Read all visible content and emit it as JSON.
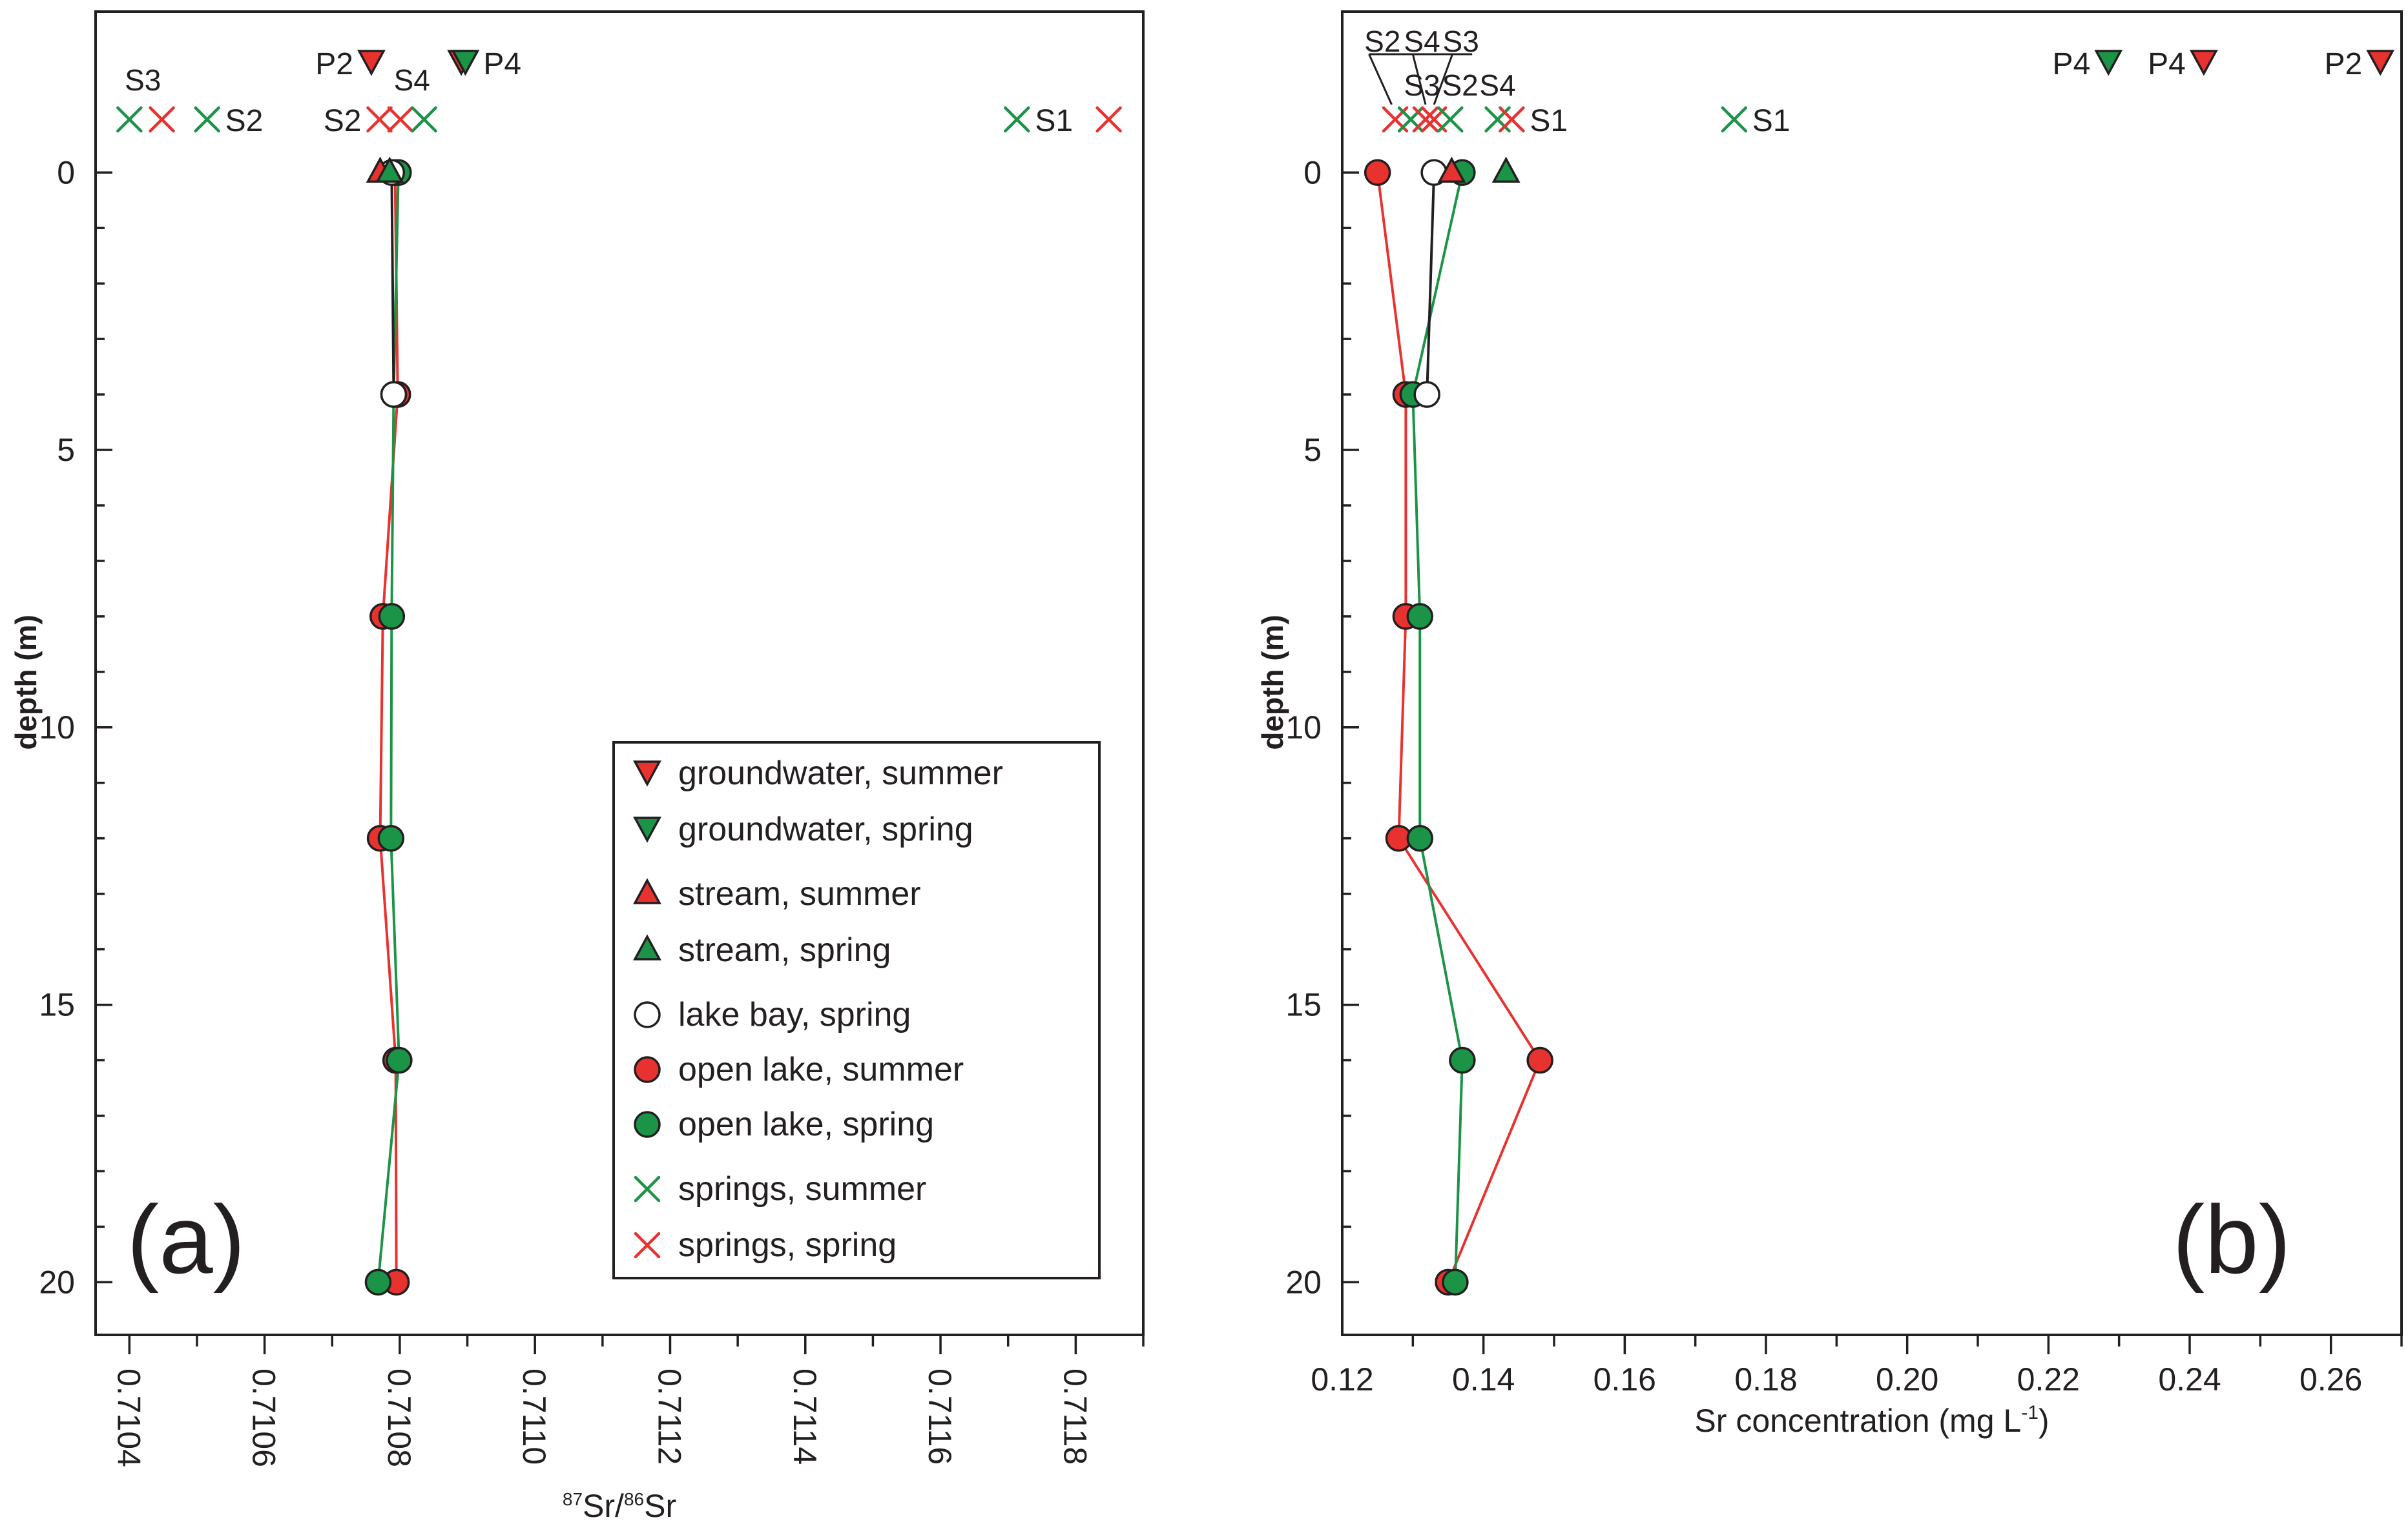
{
  "figure": {
    "panel_a_letter": "(a)",
    "panel_b_letter": "(b)"
  },
  "legend": {
    "entries": [
      {
        "label": "groundwater, summer",
        "marker": "triangle-down",
        "color": "#e8322f"
      },
      {
        "label": "groundwater, spring",
        "marker": "triangle-down",
        "color": "#1c9447"
      },
      {
        "label": "stream, summer",
        "marker": "triangle-up",
        "color": "#e8322f"
      },
      {
        "label": "stream, spring",
        "marker": "triangle-up",
        "color": "#1c9447"
      },
      {
        "label": "lake bay, spring",
        "marker": "circle",
        "color": "#ffffff"
      },
      {
        "label": "open lake, summer",
        "marker": "circle",
        "color": "#e8322f"
      },
      {
        "label": "open lake, spring",
        "marker": "circle",
        "color": "#1c9447"
      },
      {
        "label": "springs, summer",
        "marker": "cross",
        "color": "#1c9447"
      },
      {
        "label": "springs, spring",
        "marker": "cross",
        "color": "#e8322f"
      }
    ]
  },
  "colors": {
    "summer": "#e8322f",
    "spring": "#1c9447",
    "lakebay_fill": "#ffffff",
    "frame": "#231f20"
  },
  "chart_data": [
    {
      "type": "line",
      "panel": "(a)",
      "xlabel_main": "Sr/",
      "xlabel_sup1": "87",
      "xlabel_sup2": "86",
      "xlabel_tail": "Sr",
      "ylabel": "depth (m)",
      "xlim": [
        0.71035,
        0.7119
      ],
      "ylim": [
        20.95,
        -2.9
      ],
      "xticks": [
        0.7104,
        0.7106,
        0.7108,
        0.711,
        0.7112,
        0.7114,
        0.7116,
        0.7118
      ],
      "xtick_labels": [
        "0.7104",
        "0.7106",
        "0.7108",
        "0.7110",
        "0.7112",
        "0.7114",
        "0.7116",
        "0.7118"
      ],
      "yticks": [
        0,
        5,
        10,
        15,
        20
      ],
      "ytick_labels": [
        "0",
        "5",
        "10",
        "15",
        "20"
      ],
      "series": [
        {
          "name": "open lake, summer",
          "color": "#e8322f",
          "line": true,
          "marker": "circle",
          "depth": [
            0,
            4,
            8,
            12,
            16,
            20
          ],
          "values": [
            0.710793,
            0.710797,
            0.710775,
            0.710771,
            0.710794,
            0.710795
          ]
        },
        {
          "name": "open lake, spring",
          "color": "#1c9447",
          "line": true,
          "marker": "circle",
          "depth": [
            0,
            4,
            8,
            12,
            16,
            20
          ],
          "values": [
            0.710798,
            0.710791,
            0.710788,
            0.710787,
            0.710799,
            0.710768
          ]
        },
        {
          "name": "lake bay, spring",
          "color": "#ffffff",
          "line": true,
          "marker": "circle",
          "depth": [
            0,
            4
          ],
          "values": [
            0.710788,
            0.710791
          ]
        },
        {
          "name": "stream, summer",
          "color": "#e8322f",
          "line": false,
          "marker": "triangle-up",
          "depth": [
            0
          ],
          "values": [
            0.710771
          ]
        },
        {
          "name": "stream, spring",
          "color": "#1c9447",
          "line": false,
          "marker": "triangle-up",
          "depth": [
            0
          ],
          "values": [
            0.710785
          ]
        }
      ],
      "sources_row1": [
        {
          "name": "groundwater, summer",
          "label": "P2",
          "label_side": "left",
          "marker": "triangle-down",
          "color": "#e8322f",
          "value": 0.710758
        },
        {
          "name": "groundwater, summer",
          "label": "",
          "label_side": "none",
          "marker": "triangle-down",
          "color": "#e8322f",
          "value": 0.710891
        },
        {
          "name": "groundwater, spring",
          "label": "P4",
          "label_side": "right",
          "marker": "triangle-down",
          "color": "#1c9447",
          "value": 0.710897
        }
      ],
      "sources_row2": [
        {
          "name": "springs, summer",
          "label": "",
          "label_side": "none",
          "marker": "cross",
          "color": "#1c9447",
          "value": 0.7104
        },
        {
          "name": "springs, spring",
          "label": "",
          "label_side": "none",
          "marker": "cross",
          "color": "#e8322f",
          "value": 0.710448
        },
        {
          "name": "springs, summer",
          "label": "S2",
          "label_side": "right",
          "marker": "cross",
          "color": "#1c9447",
          "value": 0.710515
        },
        {
          "name": "springs, spring",
          "label": "S2",
          "label_side": "left",
          "marker": "cross",
          "color": "#e8322f",
          "value": 0.71077
        },
        {
          "name": "springs, spring",
          "label": "",
          "label_side": "none",
          "marker": "cross",
          "color": "#e8322f",
          "value": 0.710801
        },
        {
          "name": "springs, summer",
          "label": "",
          "label_side": "none",
          "marker": "cross",
          "color": "#1c9447",
          "value": 0.710836
        },
        {
          "name": "springs, summer",
          "label": "S1",
          "label_side": "right",
          "marker": "cross",
          "color": "#1c9447",
          "value": 0.711713
        },
        {
          "name": "springs, spring",
          "label": "",
          "label_side": "none",
          "marker": "cross",
          "color": "#e8322f",
          "value": 0.711849
        }
      ],
      "source_labels": [
        {
          "text": "S3",
          "value": 0.71042,
          "row": "above-row2"
        },
        {
          "text": "S4",
          "value": 0.710818,
          "row": "above-row2"
        }
      ]
    },
    {
      "type": "line",
      "panel": "(b)",
      "xlabel_main": "Sr concentration (mg L",
      "xlabel_sup": "-1",
      "xlabel_tail": ")",
      "ylabel": "depth (m)",
      "xlim": [
        0.12,
        0.27
      ],
      "ylim": [
        20.95,
        -2.9
      ],
      "xticks": [
        0.12,
        0.14,
        0.16,
        0.18,
        0.2,
        0.22,
        0.24,
        0.26
      ],
      "xtick_labels": [
        "0.12",
        "0.14",
        "0.16",
        "0.18",
        "0.20",
        "0.22",
        "0.24",
        "0.26"
      ],
      "yticks": [
        0,
        5,
        10,
        15,
        20
      ],
      "ytick_labels": [
        "0",
        "5",
        "10",
        "15",
        "20"
      ],
      "series": [
        {
          "name": "open lake, summer",
          "color": "#e8322f",
          "line": true,
          "marker": "circle",
          "depth": [
            0,
            4,
            8,
            12,
            16,
            20
          ],
          "values": [
            0.125,
            0.129,
            0.129,
            0.128,
            0.148,
            0.135
          ]
        },
        {
          "name": "open lake, spring",
          "color": "#1c9447",
          "line": true,
          "marker": "circle",
          "depth": [
            0,
            4,
            8,
            12,
            16,
            20
          ],
          "values": [
            0.137,
            0.13,
            0.131,
            0.131,
            0.137,
            0.136
          ]
        },
        {
          "name": "lake bay, spring",
          "color": "#ffffff",
          "line": true,
          "marker": "circle",
          "depth": [
            0,
            4
          ],
          "values": [
            0.133,
            0.132
          ]
        },
        {
          "name": "stream, summer",
          "color": "#e8322f",
          "line": false,
          "marker": "triangle-up",
          "depth": [
            0
          ],
          "values": [
            0.1355
          ]
        },
        {
          "name": "stream, spring",
          "color": "#1c9447",
          "line": false,
          "marker": "triangle-up",
          "depth": [
            0
          ],
          "values": [
            0.1432
          ]
        }
      ],
      "sources_row1": [
        {
          "name": "groundwater, spring",
          "label": "P4",
          "label_side": "left",
          "marker": "triangle-down",
          "color": "#1c9447",
          "value": 0.2285
        },
        {
          "name": "groundwater, summer",
          "label": "P4",
          "label_side": "left",
          "marker": "triangle-down",
          "color": "#e8322f",
          "value": 0.242
        },
        {
          "name": "groundwater, summer",
          "label": "P2",
          "label_side": "left",
          "marker": "triangle-down",
          "color": "#e8322f",
          "value": 0.267
        }
      ],
      "sources_row2": [
        {
          "name": "springs, spring",
          "label": "",
          "label_side": "none",
          "marker": "cross",
          "color": "#e8322f",
          "value": 0.1275
        },
        {
          "name": "springs, summer",
          "label": "",
          "label_side": "none",
          "marker": "cross",
          "color": "#1c9447",
          "value": 0.1297
        },
        {
          "name": "springs, spring",
          "label": "",
          "label_side": "none",
          "marker": "cross",
          "color": "#e8322f",
          "value": 0.1318
        },
        {
          "name": "springs, spring",
          "label": "",
          "label_side": "none",
          "marker": "cross",
          "color": "#e8322f",
          "value": 0.133
        },
        {
          "name": "springs, summer",
          "label": "",
          "label_side": "none",
          "marker": "cross",
          "color": "#1c9447",
          "value": 0.1353
        },
        {
          "name": "springs, summer",
          "label": "",
          "label_side": "none",
          "marker": "cross",
          "color": "#1c9447",
          "value": 0.142
        },
        {
          "name": "springs, spring",
          "label": "S1",
          "label_side": "right",
          "marker": "cross",
          "color": "#e8322f",
          "value": 0.144
        },
        {
          "name": "springs, summer",
          "label": "S1",
          "label_side": "right",
          "marker": "cross",
          "color": "#1c9447",
          "value": 0.1755
        }
      ],
      "source_labels": [
        {
          "text": "S2",
          "value": 0.1257,
          "row": "top"
        },
        {
          "text": "S4",
          "value": 0.1313,
          "row": "top"
        },
        {
          "text": "S3",
          "value": 0.1368,
          "row": "top"
        },
        {
          "text": "S3",
          "value": 0.1313,
          "row": "mid"
        },
        {
          "text": "S2",
          "value": 0.1367,
          "row": "mid"
        },
        {
          "text": "S4",
          "value": 0.142,
          "row": "mid"
        }
      ]
    }
  ]
}
